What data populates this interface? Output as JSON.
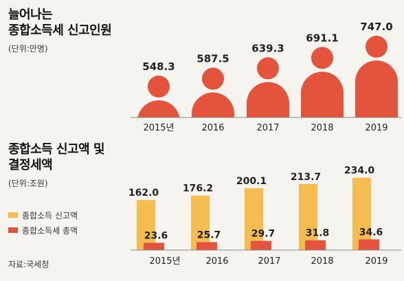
{
  "colors": {
    "red": "#e4533b",
    "yellow": "#f5bd4f",
    "text": "#222222"
  },
  "chart_data": [
    {
      "type": "bar",
      "title_line1": "늘어나는",
      "title_line2": "종합소득세 신고인원",
      "unit": "(단위:만명)",
      "categories": [
        "2015년",
        "2016",
        "2017",
        "2018",
        "2019"
      ],
      "values": [
        548.3,
        587.5,
        639.3,
        691.1,
        747.0
      ],
      "value_labels": [
        "548.3",
        "587.5",
        "639.3",
        "691.1",
        "747.0"
      ],
      "ylim": [
        0,
        800
      ]
    },
    {
      "type": "bar",
      "title_line1": "종합소득 신고액 및",
      "title_line2": "결정세액",
      "unit": "(단위:조원)",
      "categories": [
        "2015년",
        "2016",
        "2017",
        "2018",
        "2019"
      ],
      "series": [
        {
          "name": "종합소득 신고액",
          "values": [
            162.0,
            176.2,
            200.1,
            213.7,
            234.0
          ],
          "labels": [
            "162.0",
            "176.2",
            "200.1",
            "213.7",
            "234.0"
          ]
        },
        {
          "name": "종합소득세 총액",
          "values": [
            23.6,
            25.7,
            29.7,
            31.8,
            34.6
          ],
          "labels": [
            "23.6",
            "25.7",
            "29.7",
            "31.8",
            "34.6"
          ]
        }
      ],
      "ylim": [
        0,
        250
      ]
    }
  ],
  "source": "자료:국세청"
}
